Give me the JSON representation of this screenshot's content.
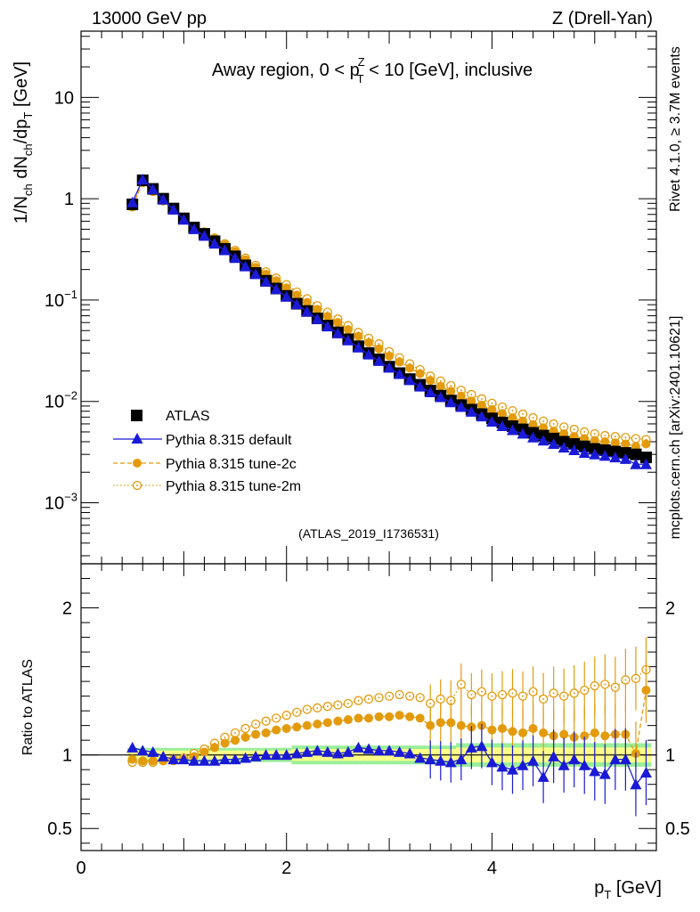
{
  "header": {
    "left": "13000 GeV pp",
    "right": "Z (Drell-Yan)"
  },
  "side_labels": {
    "rivet": "Rivet 4.1.0, ≥ 3.7M events",
    "mcplots": "mcplots.cern.ch [arXiv:2401.10621]"
  },
  "chart_data": [
    {
      "type": "scatter",
      "panel": "main",
      "title": "Away region, 0 < p_T^Z < 10 [GeV], inclusive",
      "title_parts": {
        "a": "Away region, 0 < p",
        "sup": "Z",
        "sub": "T",
        "b": " < 10 [GeV], inclusive"
      },
      "analysis_label": "(ATLAS_2019_I1736531)",
      "ylabel": "1/N_ch dN_ch/dp_T [GeV]",
      "yscale": "log",
      "ylim": [
        0.00025,
        45
      ],
      "xlim": [
        0,
        5.6
      ],
      "y_ticks": [
        {
          "v": 10,
          "label": "10",
          "sup": ""
        },
        {
          "v": 1,
          "label": "1",
          "sup": ""
        },
        {
          "v": 0.1,
          "label": "10",
          "sup": "−1"
        },
        {
          "v": 0.01,
          "label": "10",
          "sup": "−2"
        },
        {
          "v": 0.001,
          "label": "10",
          "sup": "−3"
        }
      ],
      "x": [
        0.5,
        0.6,
        0.7,
        0.8,
        0.9,
        1.0,
        1.1,
        1.2,
        1.3,
        1.4,
        1.5,
        1.6,
        1.7,
        1.8,
        1.9,
        2.0,
        2.1,
        2.2,
        2.3,
        2.4,
        2.5,
        2.6,
        2.7,
        2.8,
        2.9,
        3.0,
        3.1,
        3.2,
        3.3,
        3.4,
        3.5,
        3.6,
        3.7,
        3.8,
        3.9,
        4.0,
        4.1,
        4.2,
        4.3,
        4.4,
        4.5,
        4.6,
        4.7,
        4.8,
        4.9,
        5.0,
        5.1,
        5.2,
        5.3,
        5.4,
        5.5
      ],
      "series": [
        {
          "name": "ATLAS",
          "values": [
            0.88,
            1.52,
            1.25,
            1.0,
            0.8,
            0.64,
            0.52,
            0.45,
            0.38,
            0.32,
            0.27,
            0.22,
            0.185,
            0.155,
            0.13,
            0.11,
            0.092,
            0.078,
            0.066,
            0.056,
            0.048,
            0.041,
            0.035,
            0.03,
            0.026,
            0.022,
            0.019,
            0.0166,
            0.0146,
            0.0128,
            0.0114,
            0.0102,
            0.0092,
            0.0083,
            0.0075,
            0.0068,
            0.0062,
            0.0057,
            0.0053,
            0.0049,
            0.0046,
            0.0043,
            0.004,
            0.0038,
            0.0036,
            0.0034,
            0.0033,
            0.0032,
            0.0031,
            0.003,
            0.0028
          ]
        },
        {
          "name": "Pythia 8.315 default",
          "values": [
            0.92,
            1.55,
            1.24,
            0.98,
            0.78,
            0.62,
            0.5,
            0.43,
            0.36,
            0.31,
            0.26,
            0.215,
            0.18,
            0.152,
            0.128,
            0.108,
            0.091,
            0.077,
            0.065,
            0.055,
            0.047,
            0.04,
            0.034,
            0.029,
            0.025,
            0.0215,
            0.0186,
            0.0162,
            0.014,
            0.0123,
            0.011,
            0.0098,
            0.0088,
            0.0079,
            0.0071,
            0.0063,
            0.0057,
            0.0052,
            0.0048,
            0.0044,
            0.0041,
            0.0038,
            0.0035,
            0.0033,
            0.0031,
            0.003,
            0.0029,
            0.0028,
            0.0027,
            0.0024,
            0.0024
          ]
        },
        {
          "name": "Pythia 8.315 tune-2c",
          "values": [
            0.85,
            1.45,
            1.19,
            0.96,
            0.77,
            0.62,
            0.52,
            0.46,
            0.4,
            0.35,
            0.3,
            0.25,
            0.21,
            0.18,
            0.155,
            0.132,
            0.112,
            0.095,
            0.081,
            0.069,
            0.06,
            0.051,
            0.044,
            0.038,
            0.033,
            0.028,
            0.0245,
            0.0213,
            0.0188,
            0.0161,
            0.0141,
            0.0126,
            0.0113,
            0.0101,
            0.0092,
            0.0083,
            0.0076,
            0.0069,
            0.0064,
            0.0059,
            0.0055,
            0.0051,
            0.0048,
            0.0045,
            0.0043,
            0.0041,
            0.004,
            0.0039,
            0.0038,
            0.0036,
            0.0038
          ]
        },
        {
          "name": "Pythia 8.315 tune-2m",
          "values": [
            0.83,
            1.44,
            1.18,
            0.95,
            0.77,
            0.62,
            0.53,
            0.47,
            0.41,
            0.36,
            0.31,
            0.26,
            0.22,
            0.19,
            0.165,
            0.142,
            0.12,
            0.103,
            0.088,
            0.076,
            0.065,
            0.056,
            0.048,
            0.042,
            0.037,
            0.031,
            0.027,
            0.0235,
            0.0206,
            0.0178,
            0.0159,
            0.0143,
            0.0129,
            0.0117,
            0.0106,
            0.0096,
            0.0088,
            0.0081,
            0.0075,
            0.0069,
            0.0064,
            0.006,
            0.0056,
            0.0053,
            0.005,
            0.0048,
            0.0046,
            0.0045,
            0.0044,
            0.0043,
            0.0042
          ]
        }
      ]
    },
    {
      "type": "scatter",
      "panel": "ratio",
      "ylabel": "Ratio to ATLAS",
      "ylim": [
        0.35,
        2.3
      ],
      "xlim": [
        0,
        5.6
      ],
      "xlabel": "p_T [GeV]",
      "xlabel_parts": {
        "a": "p",
        "sub": "T",
        "b": " [GeV]"
      },
      "x_ticks": [
        {
          "v": 0,
          "label": "0"
        },
        {
          "v": 2,
          "label": "2"
        },
        {
          "v": 4,
          "label": "4"
        }
      ],
      "y_ticks": [
        {
          "v": 2,
          "label": "2"
        },
        {
          "v": 1,
          "label": "1"
        },
        {
          "v": 0.5,
          "label": "0.5"
        }
      ],
      "band_ranges": [
        0.03,
        0.03,
        0.03,
        0.03,
        0.03,
        0.03,
        0.03,
        0.03,
        0.03,
        0.03,
        0.03,
        0.03,
        0.03,
        0.03,
        0.03,
        0.03,
        0.04,
        0.04,
        0.04,
        0.04,
        0.04,
        0.04,
        0.04,
        0.04,
        0.04,
        0.04,
        0.04,
        0.04,
        0.04,
        0.04,
        0.04,
        0.04,
        0.05,
        0.05,
        0.05,
        0.05,
        0.05,
        0.05,
        0.05,
        0.05,
        0.05,
        0.05,
        0.05,
        0.05,
        0.05,
        0.05,
        0.05,
        0.05,
        0.05,
        0.05,
        0.05
      ],
      "series": [
        {
          "name": "Pythia 8.315 default",
          "values": [
            1.05,
            1.03,
            1.02,
            0.99,
            0.97,
            0.97,
            0.96,
            0.96,
            0.96,
            0.97,
            0.97,
            0.98,
            0.99,
            1.0,
            1.0,
            1.0,
            1.01,
            1.02,
            1.03,
            1.02,
            1.01,
            1.02,
            1.05,
            1.04,
            1.03,
            1.03,
            1.02,
            1.01,
            0.98,
            0.97,
            0.96,
            0.95,
            0.97,
            1.05,
            1.06,
            0.95,
            0.92,
            0.9,
            0.93,
            0.96,
            0.85,
            0.99,
            0.93,
            0.97,
            0.93,
            0.89,
            0.87,
            0.97,
            0.97,
            0.8,
            0.88
          ]
        },
        {
          "name": "Pythia 8.315 tune-2c",
          "values": [
            0.97,
            0.96,
            0.96,
            0.96,
            0.96,
            0.97,
            0.99,
            1.02,
            1.05,
            1.08,
            1.1,
            1.12,
            1.14,
            1.15,
            1.17,
            1.18,
            1.19,
            1.2,
            1.21,
            1.22,
            1.23,
            1.24,
            1.25,
            1.25,
            1.26,
            1.26,
            1.27,
            1.26,
            1.25,
            1.2,
            1.22,
            1.22,
            1.2,
            1.19,
            1.2,
            1.17,
            1.18,
            1.16,
            1.15,
            1.18,
            1.15,
            1.13,
            1.14,
            1.12,
            1.13,
            1.15,
            1.13,
            1.14,
            1.14,
            1.01,
            1.44
          ]
        },
        {
          "name": "Pythia 8.315 tune-2m",
          "values": [
            0.95,
            0.95,
            0.95,
            0.96,
            0.97,
            0.98,
            1.01,
            1.04,
            1.08,
            1.12,
            1.15,
            1.18,
            1.21,
            1.23,
            1.25,
            1.27,
            1.29,
            1.31,
            1.32,
            1.33,
            1.34,
            1.35,
            1.37,
            1.38,
            1.39,
            1.4,
            1.41,
            1.4,
            1.39,
            1.35,
            1.38,
            1.37,
            1.48,
            1.41,
            1.43,
            1.4,
            1.41,
            1.42,
            1.4,
            1.43,
            1.38,
            1.42,
            1.4,
            1.42,
            1.44,
            1.47,
            1.48,
            1.46,
            1.51,
            1.52,
            1.58
          ]
        }
      ]
    }
  ],
  "legend": [
    {
      "label": "ATLAS",
      "color": "#000000"
    },
    {
      "label": "Pythia 8.315 default",
      "color": "#1a1ad6"
    },
    {
      "label": "Pythia 8.315 tune-2c",
      "color": "#e39b0d"
    },
    {
      "label": "Pythia 8.315 tune-2m",
      "color": "#e39b0d"
    }
  ],
  "colors": {
    "atlas": "#000000",
    "default": "#1a1ad6",
    "tune2c": "#e39b0d",
    "tune2m": "#e39b0d",
    "band_inner": "#ffff88",
    "band_outer": "#99ee99",
    "ref_line": "#000000",
    "analysis_label": "#999999",
    "side_label": "#888888"
  }
}
